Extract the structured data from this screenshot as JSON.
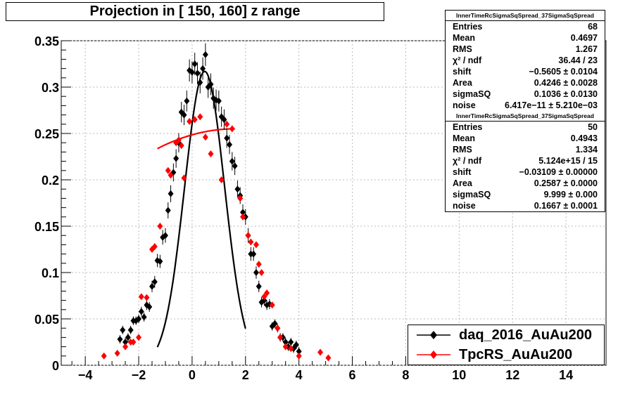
{
  "title": "Projection in [ 150, 160] z range",
  "stats_boxes": [
    {
      "header": "InnerTimeRcSigmaSqSpread_37SigmaSqSpread",
      "rows": [
        {
          "label": "Entries",
          "value": "68"
        },
        {
          "label": "Mean",
          "value": "0.4697"
        },
        {
          "label": "RMS",
          "value": "1.267"
        },
        {
          "label": "χ² / ndf",
          "value": "36.44 / 23"
        },
        {
          "label": "shift",
          "value": "−0.5605 ± 0.0104"
        },
        {
          "label": "Area",
          "value": "0.4246 ± 0.0028"
        },
        {
          "label": "sigmaSQ",
          "value": "0.1036 ± 0.0130"
        },
        {
          "label": "noise",
          "value": "6.417e−11 ± 5.210e−03"
        }
      ]
    },
    {
      "header": "InnerTimeRcSigmaSqSpread_37SigmaSqSpread",
      "rows": [
        {
          "label": "Entries",
          "value": "50"
        },
        {
          "label": "Mean",
          "value": "0.4943"
        },
        {
          "label": "RMS",
          "value": "1.334"
        },
        {
          "label": "χ² / ndf",
          "value": "5.124e+15 / 15"
        },
        {
          "label": "shift",
          "value": "−0.03109 ± 0.00000"
        },
        {
          "label": "Area",
          "value": "0.2587 ± 0.0000"
        },
        {
          "label": "sigmaSQ",
          "value": "9.999 ± 0.000"
        },
        {
          "label": "noise",
          "value": "0.1667 ± 0.0001"
        }
      ]
    }
  ],
  "legend": [
    {
      "label": "daq_2016_AuAu200",
      "color": "#000000"
    },
    {
      "label": "TpcRS_AuAu200",
      "color": "#ff0000"
    }
  ],
  "chart_data": {
    "type": "scatter",
    "title": "Projection in [ 150, 160] z range",
    "xlim": [
      -4.9,
      15.5
    ],
    "ylim": [
      0,
      0.35
    ],
    "x_ticks": [
      -4,
      -2,
      0,
      2,
      4,
      6,
      8,
      10,
      12,
      14
    ],
    "x_tick_labels": [
      "−4",
      "−2",
      "0",
      "2",
      "4",
      "6",
      "8",
      "10",
      "12",
      "14"
    ],
    "y_ticks": [
      0,
      0.05,
      0.1,
      0.15,
      0.2,
      0.25,
      0.3,
      0.35
    ],
    "y_tick_labels": [
      "0",
      "0.05",
      "0.1",
      "0.15",
      "0.2",
      "0.25",
      "0.3",
      "0.35"
    ],
    "grid": true,
    "legend_position": "bottom-right",
    "series": [
      {
        "name": "daq_2016_AuAu200",
        "color": "#000000",
        "fit_color": "#000000",
        "points": [
          [
            -2.7,
            0.028
          ],
          [
            -2.6,
            0.038
          ],
          [
            -2.5,
            0.025
          ],
          [
            -2.4,
            0.03
          ],
          [
            -2.3,
            0.038
          ],
          [
            -2.2,
            0.048
          ],
          [
            -2.1,
            0.048
          ],
          [
            -2.0,
            0.05
          ],
          [
            -1.9,
            0.058
          ],
          [
            -1.8,
            0.052
          ],
          [
            -1.7,
            0.065
          ],
          [
            -1.6,
            0.063
          ],
          [
            -1.5,
            0.085
          ],
          [
            -1.4,
            0.09
          ],
          [
            -1.3,
            0.113
          ],
          [
            -1.2,
            0.112
          ],
          [
            -1.1,
            0.138
          ],
          [
            -1.0,
            0.14
          ],
          [
            -0.9,
            0.167
          ],
          [
            -0.8,
            0.185
          ],
          [
            -0.7,
            0.208
          ],
          [
            -0.6,
            0.223
          ],
          [
            -0.5,
            0.24
          ],
          [
            -0.4,
            0.273
          ],
          [
            -0.3,
            0.27
          ],
          [
            -0.2,
            0.285
          ],
          [
            -0.1,
            0.318
          ],
          [
            0.0,
            0.316
          ],
          [
            0.1,
            0.325
          ],
          [
            0.2,
            0.315
          ],
          [
            0.3,
            0.305
          ],
          [
            0.4,
            0.32
          ],
          [
            0.5,
            0.335
          ],
          [
            0.6,
            0.3
          ],
          [
            0.7,
            0.303
          ],
          [
            0.8,
            0.288
          ],
          [
            0.9,
            0.286
          ],
          [
            1.0,
            0.285
          ],
          [
            1.1,
            0.268
          ],
          [
            1.2,
            0.265
          ],
          [
            1.3,
            0.245
          ],
          [
            1.4,
            0.238
          ],
          [
            1.5,
            0.22
          ],
          [
            1.6,
            0.215
          ],
          [
            1.7,
            0.19
          ],
          [
            1.8,
            0.183
          ],
          [
            1.9,
            0.165
          ],
          [
            2.0,
            0.16
          ],
          [
            2.1,
            0.14
          ],
          [
            2.2,
            0.12
          ],
          [
            2.3,
            0.12
          ],
          [
            2.4,
            0.1
          ],
          [
            2.5,
            0.085
          ],
          [
            2.6,
            0.068
          ],
          [
            2.7,
            0.07
          ],
          [
            2.8,
            0.065
          ],
          [
            2.9,
            0.066
          ],
          [
            3.0,
            0.042
          ],
          [
            3.1,
            0.045
          ],
          [
            3.2,
            0.04
          ],
          [
            3.3,
            0.03
          ],
          [
            3.4,
            0.03
          ],
          [
            3.5,
            0.025
          ],
          [
            3.6,
            0.02
          ],
          [
            3.7,
            0.025
          ],
          [
            3.8,
            0.018
          ],
          [
            3.9,
            0.022
          ],
          [
            4.0,
            0.015
          ]
        ],
        "fit_x_range": [
          -1.3,
          2.0
        ]
      },
      {
        "name": "TpcRS_AuAu200",
        "color": "#ff0000",
        "fit_color": "#ff0000",
        "points": [
          [
            -3.3,
            0.01
          ],
          [
            -2.8,
            0.013
          ],
          [
            -2.5,
            0.02
          ],
          [
            -2.3,
            0.025
          ],
          [
            -2.2,
            0.025
          ],
          [
            -2.0,
            0.03
          ],
          [
            -1.9,
            0.074
          ],
          [
            -1.7,
            0.073
          ],
          [
            -1.5,
            0.125
          ],
          [
            -1.4,
            0.128
          ],
          [
            -1.2,
            0.15
          ],
          [
            -0.9,
            0.21
          ],
          [
            -0.8,
            0.205
          ],
          [
            -0.6,
            0.24
          ],
          [
            -0.5,
            0.243
          ],
          [
            -0.4,
            0.237
          ],
          [
            -0.3,
            0.202
          ],
          [
            -0.1,
            0.263
          ],
          [
            0.1,
            0.265
          ],
          [
            0.3,
            0.268
          ],
          [
            0.5,
            0.246
          ],
          [
            0.7,
            0.228
          ],
          [
            1.1,
            0.2
          ],
          [
            1.3,
            0.26
          ],
          [
            1.5,
            0.255
          ],
          [
            1.8,
            0.18
          ],
          [
            1.9,
            0.16
          ],
          [
            2.1,
            0.14
          ],
          [
            2.2,
            0.133
          ],
          [
            2.4,
            0.13
          ],
          [
            2.5,
            0.109
          ],
          [
            2.6,
            0.1
          ],
          [
            2.7,
            0.074
          ],
          [
            2.8,
            0.078
          ],
          [
            3.0,
            0.065
          ],
          [
            3.2,
            0.04
          ],
          [
            3.3,
            0.03
          ],
          [
            3.5,
            0.02
          ],
          [
            3.7,
            0.018
          ],
          [
            4.0,
            0.01
          ],
          [
            4.8,
            0.014
          ],
          [
            5.1,
            0.008
          ]
        ],
        "fit_x_range": [
          -1.3,
          1.6
        ]
      }
    ]
  }
}
